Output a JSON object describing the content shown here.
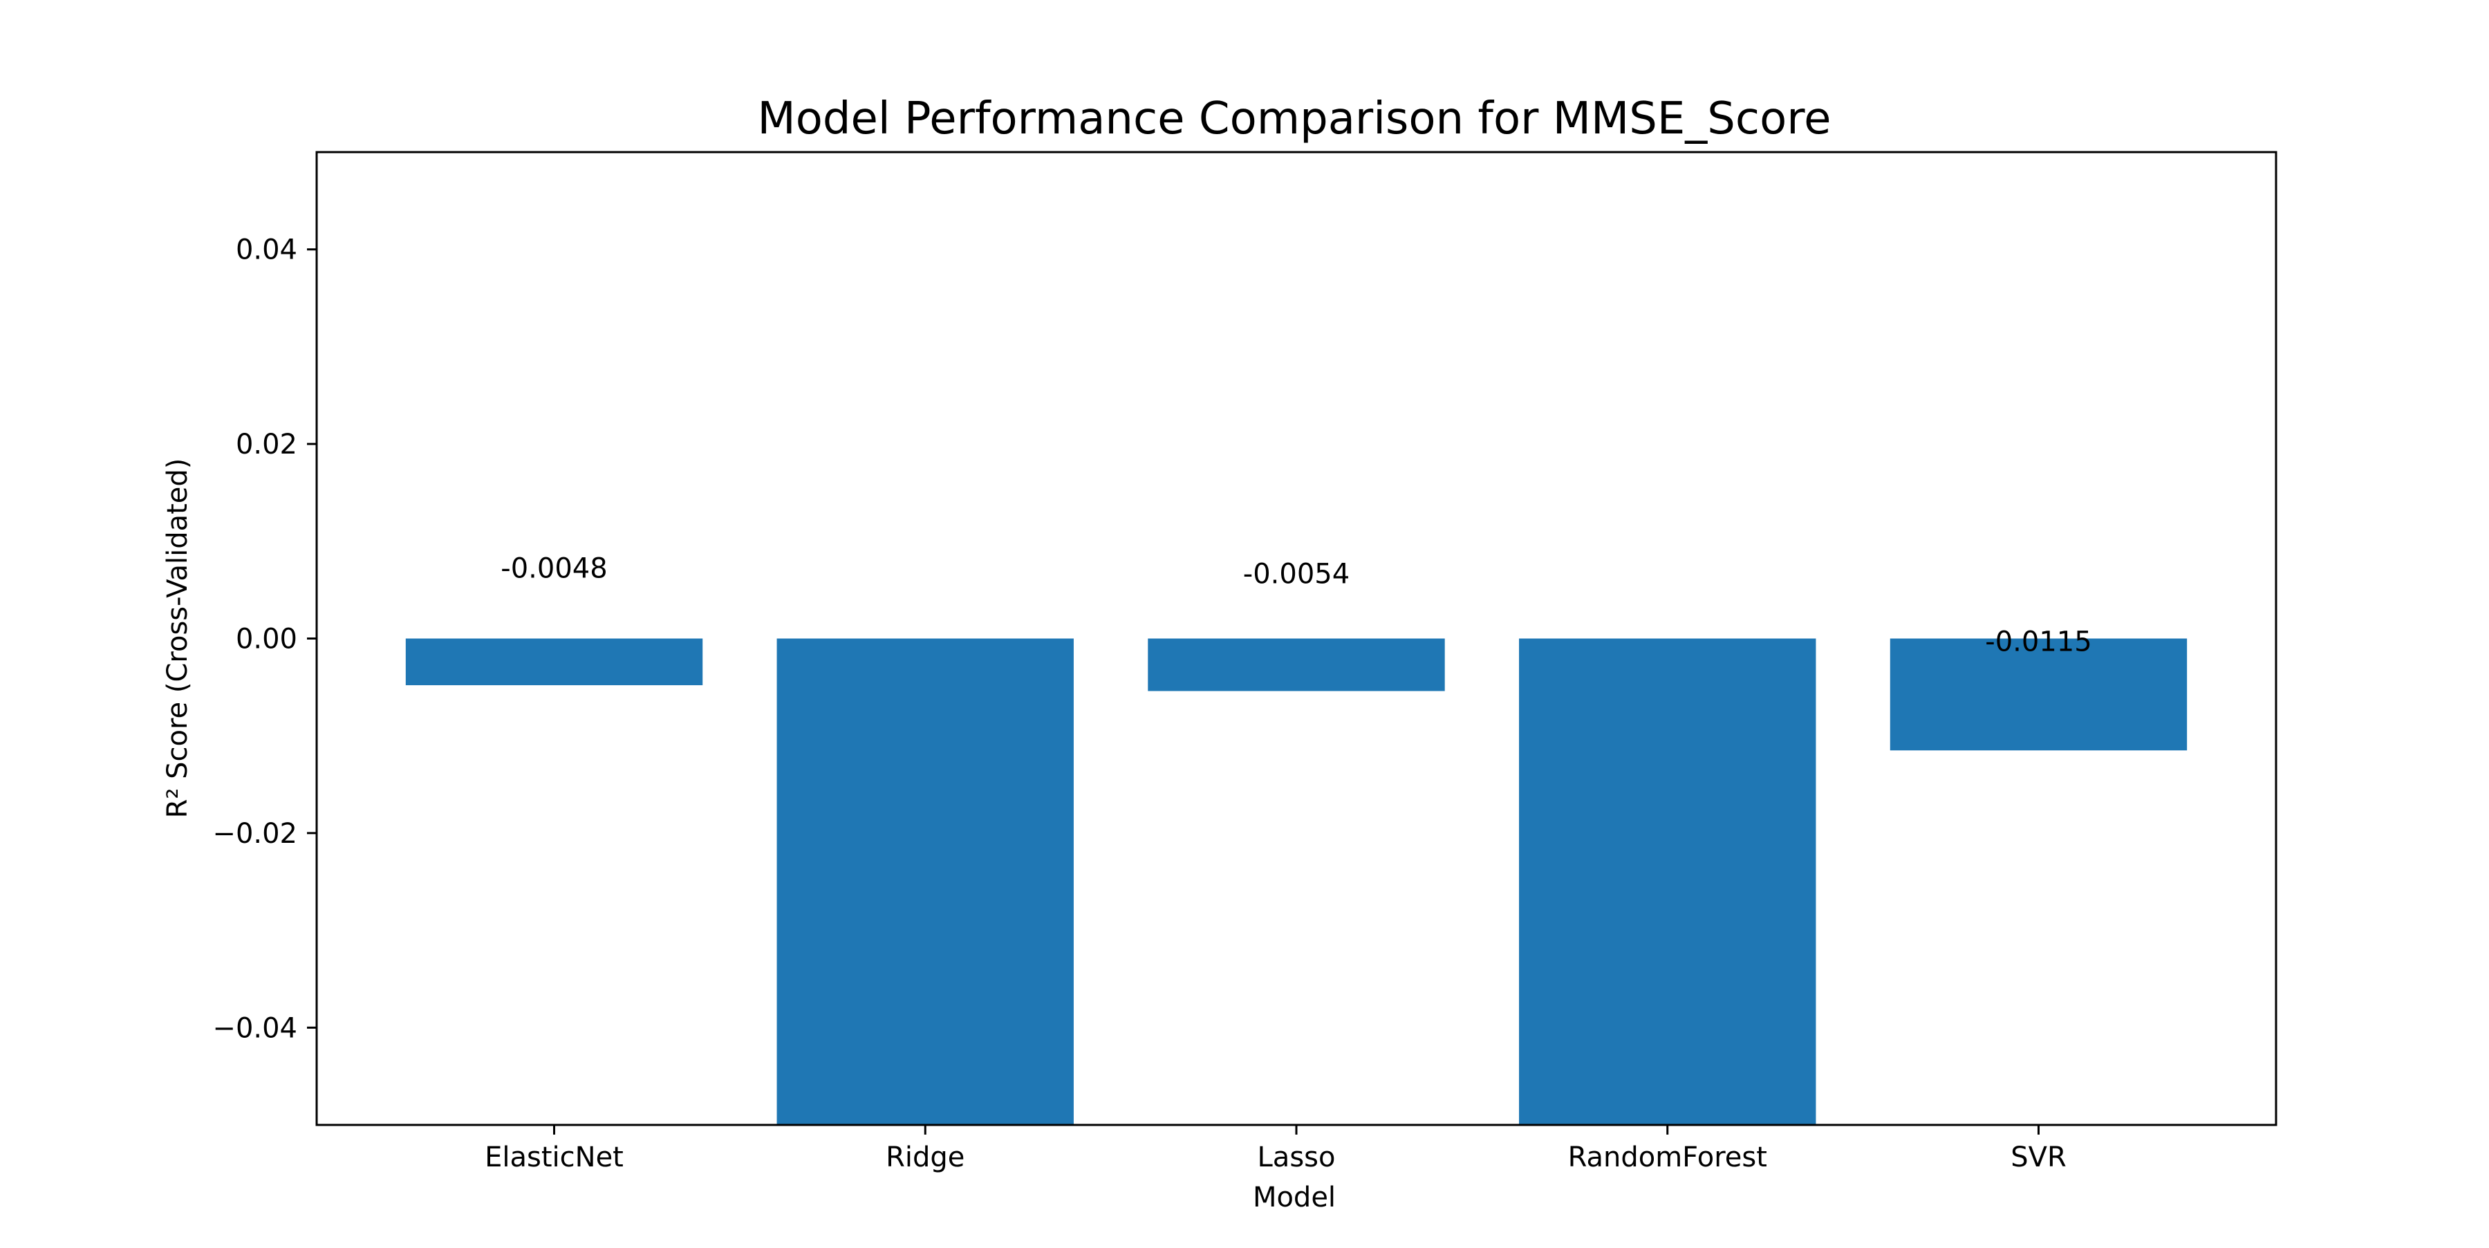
{
  "chart_data": {
    "type": "bar",
    "title": "Model Performance Comparison for MMSE_Score",
    "xlabel": "Model",
    "ylabel": "R² Score (Cross-Validated)",
    "categories": [
      "ElasticNet",
      "Ridge",
      "Lasso",
      "RandomForest",
      "SVR"
    ],
    "values": [
      -0.0048,
      -0.05,
      -0.0054,
      -0.05,
      -0.0115
    ],
    "data_labels": [
      "-0.0048",
      "",
      "-0.0054",
      "",
      "-0.0115"
    ],
    "ylim": [
      -0.05,
      0.05
    ],
    "yticks": [
      -0.04,
      -0.02,
      0.0,
      0.02,
      0.04
    ],
    "ytick_labels": [
      "−0.04",
      "−0.02",
      "0.00",
      "0.02",
      "0.04"
    ],
    "grid": false,
    "legend": "none",
    "colors": {
      "bar": "#1f77b4",
      "axes": "#000000",
      "background": "#ffffff"
    }
  }
}
